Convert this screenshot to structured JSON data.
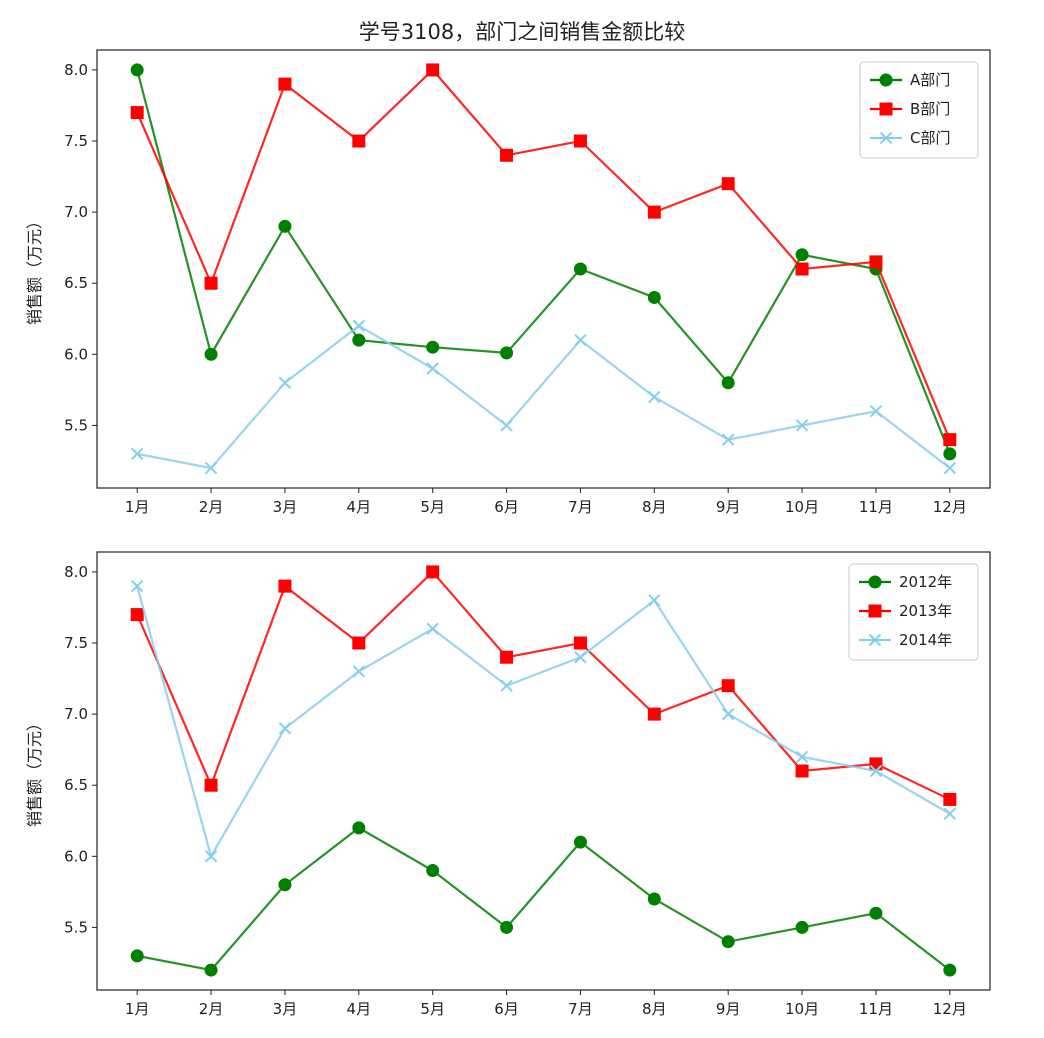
{
  "title": "学号3108，部门之间销售金额比较",
  "chart_data": [
    {
      "type": "line",
      "title": "",
      "ylabel": "销售额（万元）",
      "xlabel": "",
      "categories": [
        "1月",
        "2月",
        "3月",
        "4月",
        "5月",
        "6月",
        "7月",
        "8月",
        "9月",
        "10月",
        "11月",
        "12月"
      ],
      "ylim": [
        5.06,
        8.14
      ],
      "yticks": [
        "5.5",
        "6.0",
        "6.5",
        "7.0",
        "7.5",
        "8.0"
      ],
      "legend_position": "top-right",
      "grid": false,
      "series": [
        {
          "name": "A部门",
          "color": "#008000",
          "marker": "circle",
          "values": [
            8.0,
            6.0,
            6.9,
            6.1,
            6.05,
            6.01,
            6.6,
            6.4,
            5.8,
            6.7,
            6.6,
            5.3
          ]
        },
        {
          "name": "B部门",
          "color": "#ff0000",
          "marker": "square",
          "values": [
            7.7,
            6.5,
            7.9,
            7.5,
            8.0,
            7.4,
            7.5,
            7.0,
            7.2,
            6.6,
            6.65,
            5.4
          ]
        },
        {
          "name": "C部门",
          "color": "#87ceeb",
          "marker": "x",
          "values": [
            5.3,
            5.2,
            5.8,
            6.2,
            5.9,
            5.5,
            6.1,
            5.7,
            5.4,
            5.5,
            5.6,
            5.2
          ]
        }
      ]
    },
    {
      "type": "line",
      "title": "",
      "ylabel": "销售额（万元）",
      "xlabel": "",
      "categories": [
        "1月",
        "2月",
        "3月",
        "4月",
        "5月",
        "6月",
        "7月",
        "8月",
        "9月",
        "10月",
        "11月",
        "12月"
      ],
      "ylim": [
        5.06,
        8.14
      ],
      "yticks": [
        "5.5",
        "6.0",
        "6.5",
        "7.0",
        "7.5",
        "8.0"
      ],
      "legend_position": "top-right",
      "grid": false,
      "series": [
        {
          "name": "2012年",
          "color": "#008000",
          "marker": "circle",
          "values": [
            5.3,
            5.2,
            5.8,
            6.2,
            5.9,
            5.5,
            6.1,
            5.7,
            5.4,
            5.5,
            5.6,
            5.2
          ]
        },
        {
          "name": "2013年",
          "color": "#ff0000",
          "marker": "square",
          "values": [
            7.7,
            6.5,
            7.9,
            7.5,
            8.0,
            7.4,
            7.5,
            7.0,
            7.2,
            6.6,
            6.65,
            6.4
          ]
        },
        {
          "name": "2014年",
          "color": "#87ceeb",
          "marker": "x",
          "values": [
            7.9,
            6.0,
            6.9,
            7.3,
            7.6,
            7.2,
            7.4,
            7.8,
            7.0,
            6.7,
            6.6,
            6.3
          ]
        }
      ]
    }
  ]
}
